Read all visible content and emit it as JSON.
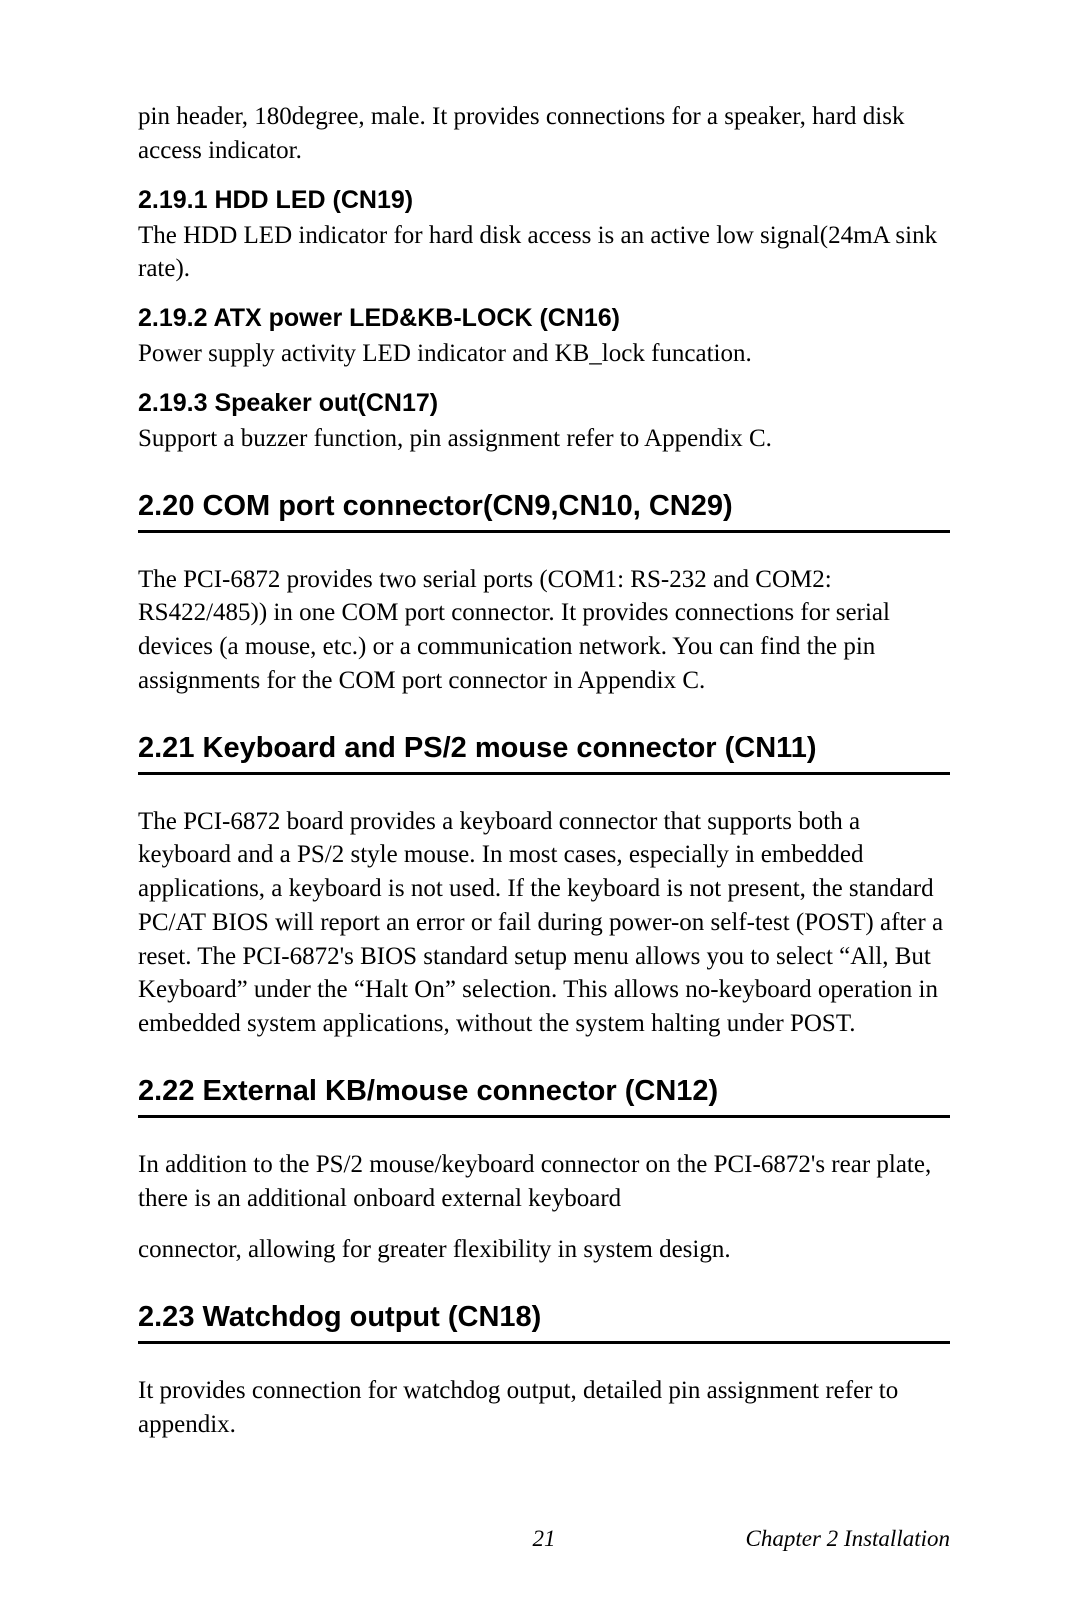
{
  "intro": "pin header, 180degree, male. It provides connections for a speaker, hard disk access indicator.",
  "sub1": {
    "heading": "2.19.1 HDD LED (CN19)",
    "text": "The HDD LED indicator for hard disk access is an active low signal(24mA sink rate)."
  },
  "sub2": {
    "heading": "2.19.2 ATX power LED&KB-LOCK (CN16)",
    "text": "Power supply activity LED indicator and KB_lock funcation."
  },
  "sub3": {
    "heading": "2.19.3  Speaker out(CN17)",
    "text": "Support a buzzer function, pin assignment refer to Appendix C."
  },
  "sec20": {
    "heading": "2.20  COM port connector(CN9,CN10, CN29)",
    "text": "The PCI-6872 provides two serial ports (COM1: RS-232 and COM2: RS422/485)) in one COM port connector. It provides connections for serial devices (a mouse, etc.) or a communication network. You can find the pin assignments for the COM port connector in Appendix C."
  },
  "sec21": {
    "heading": "2.21  Keyboard and PS/2 mouse connector (CN11)",
    "text": "The PCI-6872 board provides a keyboard connector that supports both a keyboard and a PS/2 style mouse. In most cases, especially in embedded applications, a keyboard is not used. If the keyboard is not present, the standard PC/AT BIOS will report an error or fail during power-on self-test (POST) after a reset. The PCI-6872's BIOS standard setup menu allows you to select “All, But Keyboard” under the “Halt On” selection. This allows no-keyboard operation in embedded system applications, without the system halting under POST."
  },
  "sec22": {
    "heading": "2.22   External KB/mouse connector (CN12)",
    "text1": "In addition to the PS/2 mouse/keyboard connector on the PCI-6872's rear plate, there is an additional onboard external keyboard",
    "text2": "connector, allowing for greater flexibility in system design."
  },
  "sec23": {
    "heading": "2.23  Watchdog output (CN18)",
    "text": "It provides connection for watchdog output, detailed pin assignment refer to appendix."
  },
  "footer": {
    "page": "21",
    "chapter": "Chapter 2  Installation"
  }
}
